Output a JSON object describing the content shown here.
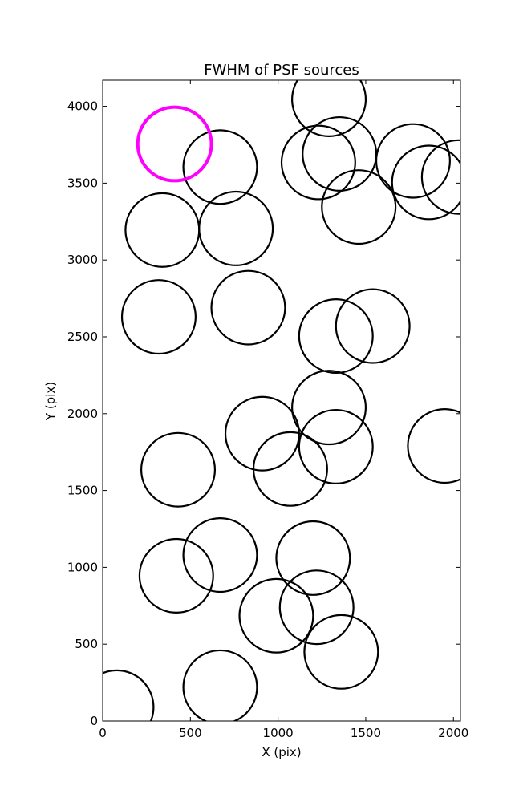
{
  "chart_data": {
    "type": "scatter",
    "title": "FWHM of PSF sources",
    "xlabel": "X (pix)",
    "ylabel": "Y (pix)",
    "xlim": [
      0,
      2040
    ],
    "ylim": [
      0,
      4170
    ],
    "x_ticks": [
      0,
      500,
      1000,
      1500,
      2000
    ],
    "y_ticks": [
      0,
      500,
      1000,
      1500,
      2000,
      2500,
      3000,
      3500,
      4000
    ],
    "grid": false,
    "legend": "none",
    "circle_radius": 210,
    "series": [
      {
        "color": "#000000",
        "points": [
          {
            "x": 1290,
            "y": 4045
          },
          {
            "x": 670,
            "y": 3605
          },
          {
            "x": 1230,
            "y": 3635
          },
          {
            "x": 1350,
            "y": 3690
          },
          {
            "x": 1770,
            "y": 3645
          },
          {
            "x": 1860,
            "y": 3505
          },
          {
            "x": 2030,
            "y": 3540
          },
          {
            "x": 1460,
            "y": 3345
          },
          {
            "x": 340,
            "y": 3195
          },
          {
            "x": 760,
            "y": 3205
          },
          {
            "x": 320,
            "y": 2630
          },
          {
            "x": 830,
            "y": 2690
          },
          {
            "x": 1330,
            "y": 2505
          },
          {
            "x": 1540,
            "y": 2570
          },
          {
            "x": 1290,
            "y": 2040
          },
          {
            "x": 910,
            "y": 1870
          },
          {
            "x": 1330,
            "y": 1785
          },
          {
            "x": 1950,
            "y": 1790
          },
          {
            "x": 430,
            "y": 1635
          },
          {
            "x": 1070,
            "y": 1640
          },
          {
            "x": 670,
            "y": 1080
          },
          {
            "x": 1200,
            "y": 1060
          },
          {
            "x": 420,
            "y": 945
          },
          {
            "x": 990,
            "y": 685
          },
          {
            "x": 1220,
            "y": 740
          },
          {
            "x": 1360,
            "y": 450
          },
          {
            "x": 80,
            "y": 90
          },
          {
            "x": 670,
            "y": 220
          }
        ]
      },
      {
        "color": "#ff00ff",
        "points": [
          {
            "x": 410,
            "y": 3755
          }
        ]
      }
    ]
  }
}
